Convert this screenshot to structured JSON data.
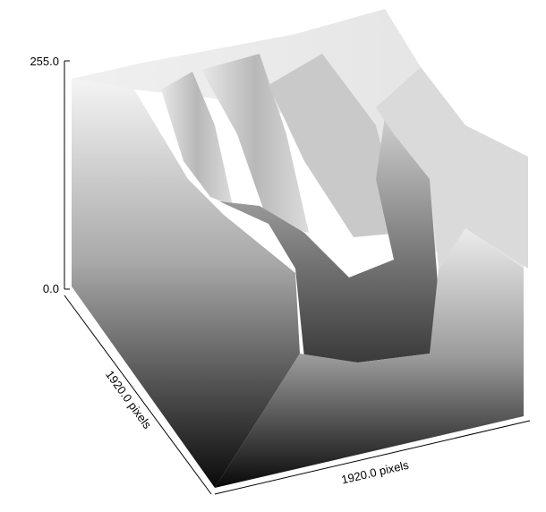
{
  "chart_data": {
    "type": "surface",
    "z_axis": {
      "range": [
        0.0,
        255.0
      ],
      "ticks": [
        "255.0",
        "0.0"
      ]
    },
    "x_axis": {
      "label": "1920.0 pixels"
    },
    "y_axis": {
      "label": "1920.0 pixels"
    },
    "colormap": "grayscale",
    "grid": false
  }
}
